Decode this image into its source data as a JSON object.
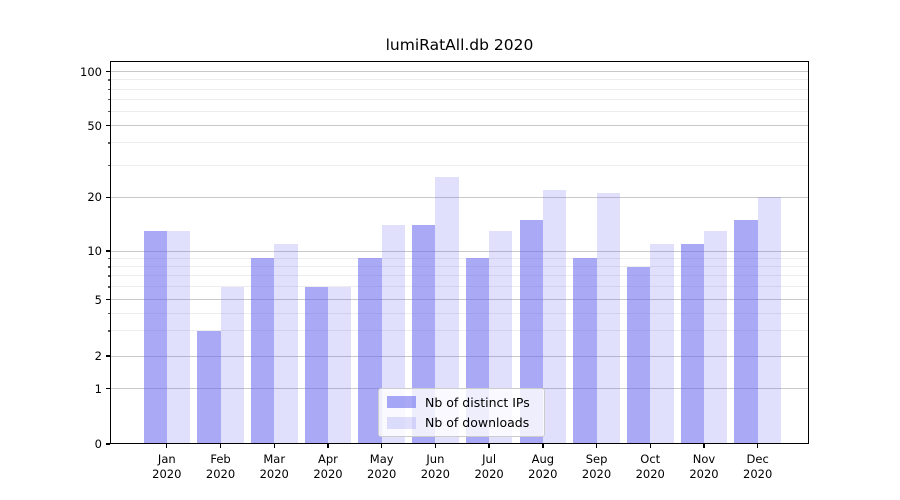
{
  "chart_data": {
    "type": "bar",
    "title": "lumiRatAll.db 2020",
    "categories": [
      "Jan",
      "Feb",
      "Mar",
      "Apr",
      "May",
      "Jun",
      "Jul",
      "Aug",
      "Sep",
      "Oct",
      "Nov",
      "Dec"
    ],
    "year_label": "2020",
    "series": [
      {
        "name": "Nb of distinct IPs",
        "color": "rgba(98, 98, 238, 0.55)",
        "values": [
          13,
          3,
          9,
          6,
          9,
          14,
          9,
          15,
          9,
          8,
          11,
          15
        ]
      },
      {
        "name": "Nb of downloads",
        "color": "rgba(98, 98, 238, 0.2)",
        "values": [
          13,
          6,
          11,
          6,
          14,
          26,
          13,
          22,
          21,
          11,
          13,
          20
        ]
      }
    ],
    "yscale": "symlog",
    "ylim": [
      0,
      113
    ],
    "y_major_ticks": [
      0,
      1,
      2,
      5,
      10,
      20,
      50,
      100
    ],
    "y_minor_ticks": [
      3,
      4,
      6,
      7,
      8,
      9,
      30,
      40,
      60,
      70,
      80,
      90
    ],
    "grid": true,
    "legend_position": "lower center",
    "colors": {
      "bar_base": "#6262ee",
      "grid_major": "#c9c9c9",
      "grid_minor": "#ededed",
      "spine": "#000000",
      "background": "#ffffff"
    }
  }
}
